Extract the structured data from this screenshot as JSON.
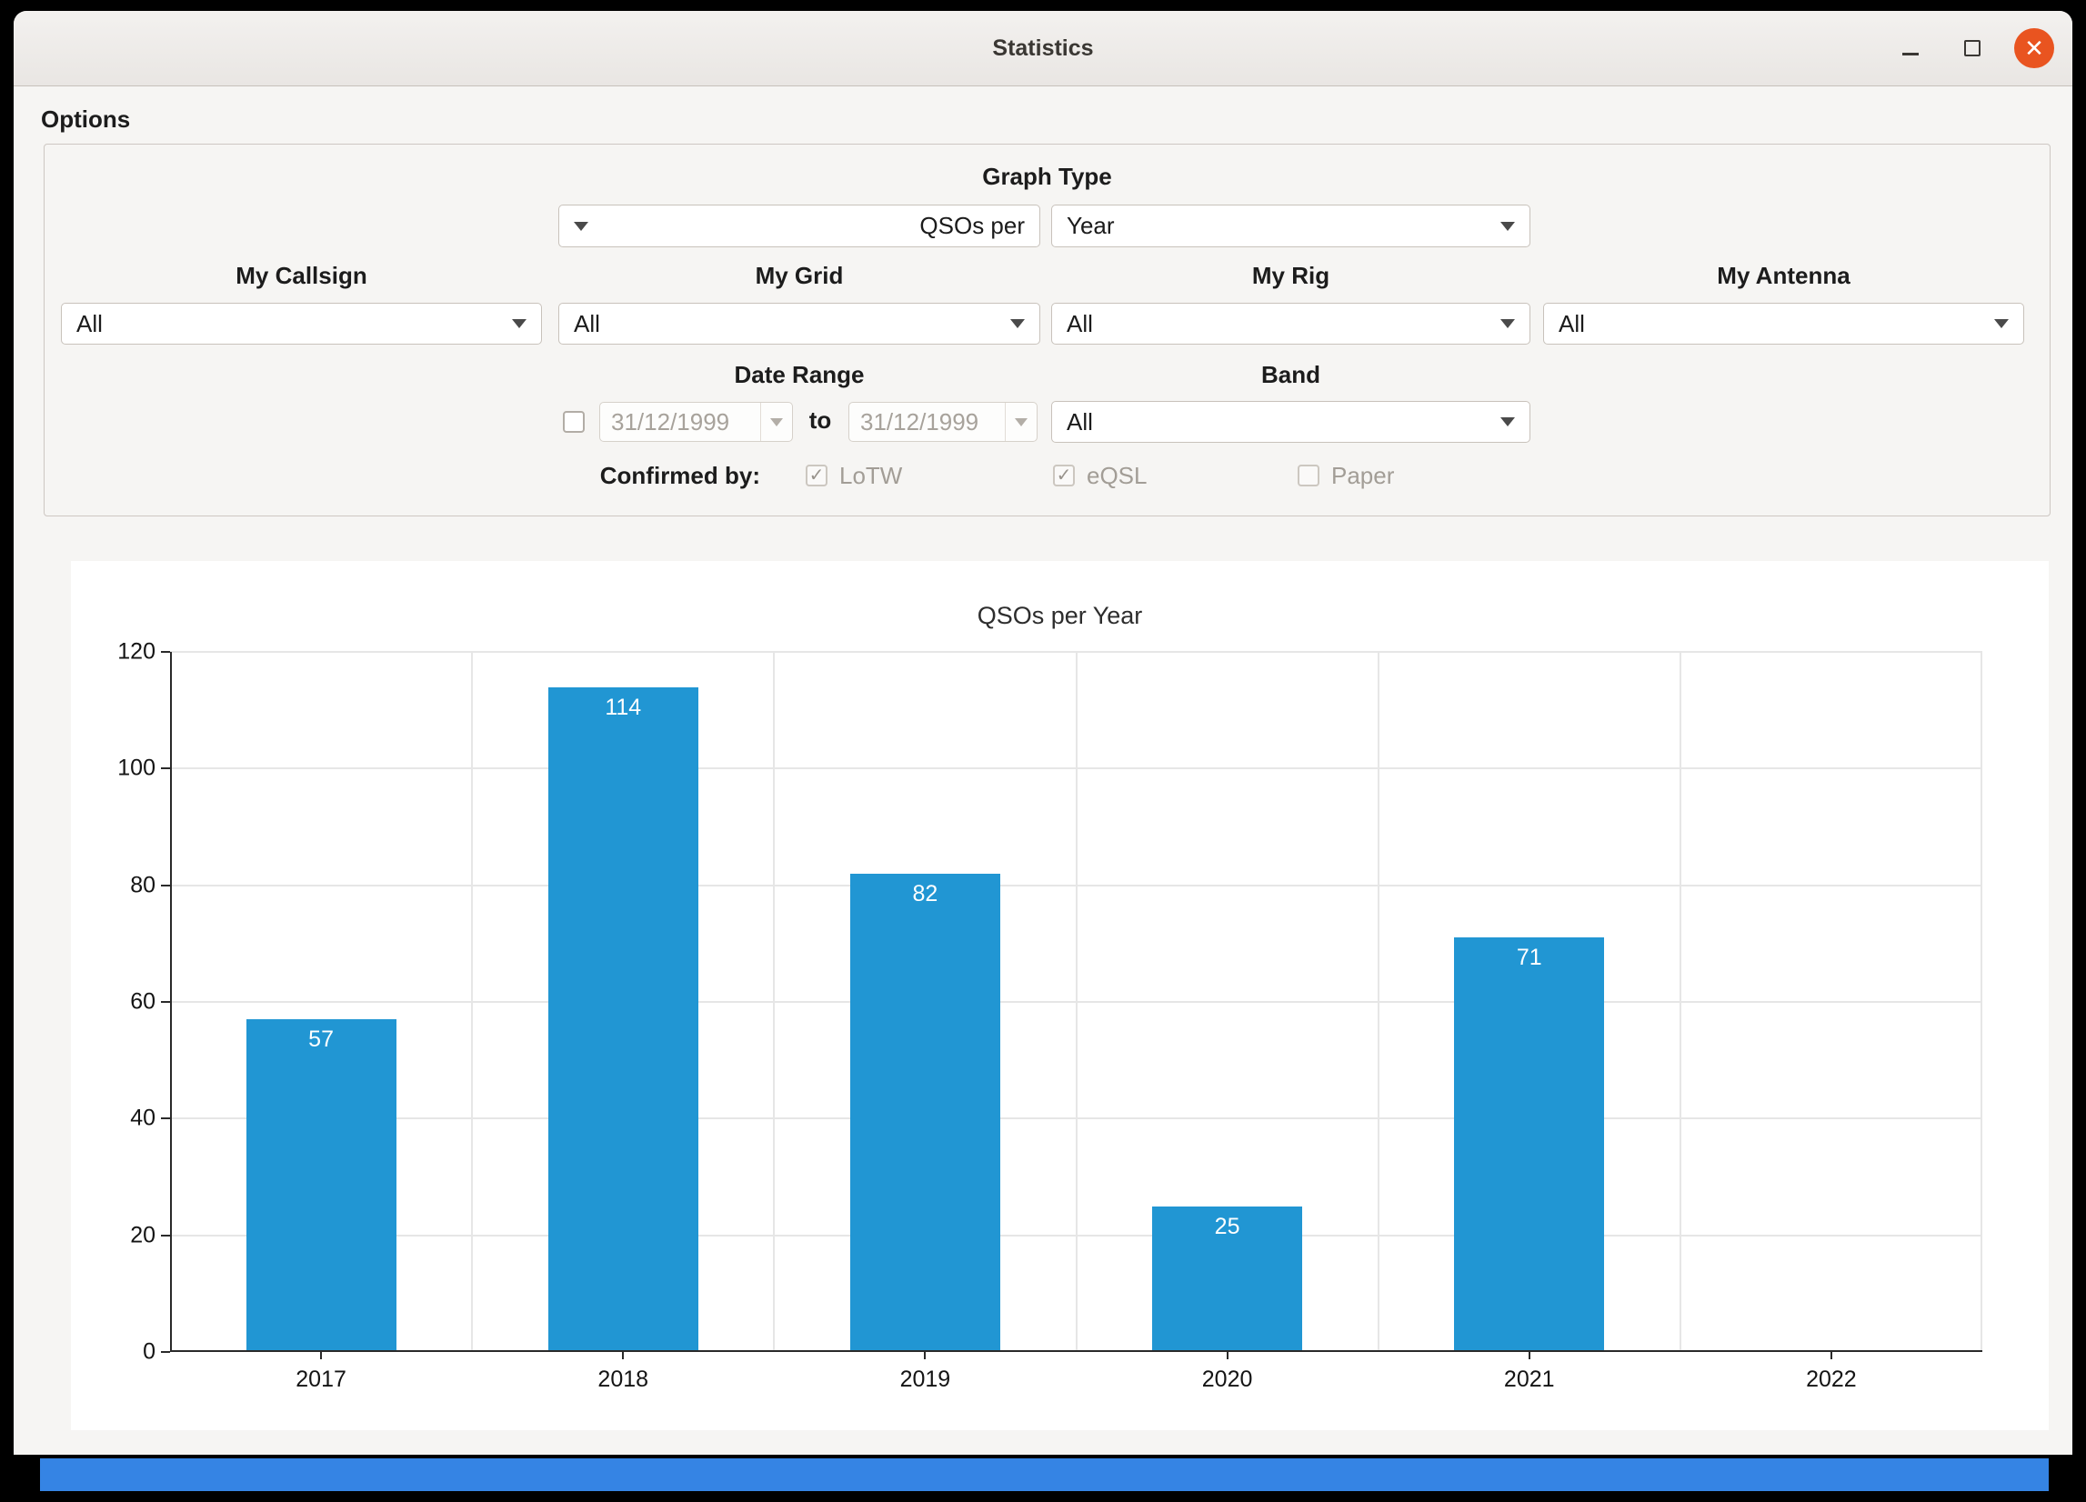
{
  "window": {
    "title": "Statistics",
    "close_icon": "✕"
  },
  "options": {
    "label": "Options",
    "graph_type": {
      "label": "Graph Type",
      "per_combo_value": "QSOs per",
      "unit_combo_value": "Year"
    },
    "filters": [
      {
        "label": "My Callsign",
        "value": "All"
      },
      {
        "label": "My Grid",
        "value": "All"
      },
      {
        "label": "My Rig",
        "value": "All"
      },
      {
        "label": "My Antenna",
        "value": "All"
      }
    ],
    "date_range": {
      "label": "Date Range",
      "checkbox_glyph": "",
      "from_value": "31/12/1999",
      "to_label": "to",
      "to_value": "31/12/1999"
    },
    "band": {
      "label": "Band",
      "value": "All"
    },
    "confirmed_by": {
      "label": "Confirmed by:",
      "checkboxes": [
        {
          "label": "LoTW",
          "glyph": "✓"
        },
        {
          "label": "eQSL",
          "glyph": "✓"
        },
        {
          "label": "Paper",
          "glyph": ""
        }
      ]
    }
  },
  "chart_data": {
    "type": "bar",
    "title": "QSOs per Year",
    "categories": [
      "2017",
      "2018",
      "2019",
      "2020",
      "2021",
      "2022"
    ],
    "values": [
      57,
      114,
      82,
      25,
      71,
      0
    ],
    "xlabel": "",
    "ylabel": "",
    "ylim": [
      0,
      120
    ],
    "yticks": [
      0,
      20,
      40,
      60,
      80,
      100,
      120
    ],
    "grid": true,
    "legend": false,
    "bar_color": "#2196d3",
    "value_label_style": "white, inside top of bar"
  }
}
